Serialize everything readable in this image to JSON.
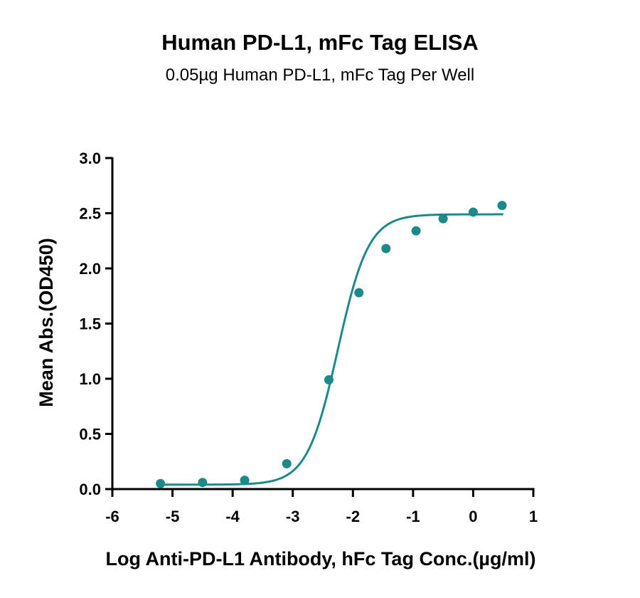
{
  "chart_data": {
    "type": "scatter",
    "title": "Human PD-L1, mFc Tag ELISA",
    "subtitle": "0.05µg Human PD-L1, mFc Tag Per Well",
    "xlabel": "Log Anti-PD-L1 Antibody, hFc Tag Conc.(µg/ml)",
    "ylabel": "Mean Abs.(OD450)",
    "xlim": [
      -6,
      1
    ],
    "ylim": [
      0,
      3.0
    ],
    "x_ticks": [
      -6,
      -5,
      -4,
      -3,
      -2,
      -1,
      0,
      1
    ],
    "x_tick_labels": [
      "-6",
      "-5",
      "-4",
      "-3",
      "-2",
      "-1",
      "0",
      "1"
    ],
    "y_ticks": [
      0,
      0.5,
      1.0,
      1.5,
      2.0,
      2.5,
      3.0
    ],
    "y_tick_labels": [
      "0.0",
      "0.5",
      "1.0",
      "1.5",
      "2.0",
      "2.5",
      "3.0"
    ],
    "grid": false,
    "color": "#1a8a8a",
    "points": {
      "x": [
        -5.2,
        -4.5,
        -3.8,
        -3.1,
        -2.4,
        -1.9,
        -1.45,
        -0.95,
        -0.5,
        0.0,
        0.48
      ],
      "y": [
        0.05,
        0.06,
        0.08,
        0.23,
        0.99,
        1.78,
        2.18,
        2.34,
        2.45,
        2.51,
        2.57
      ]
    },
    "fit": {
      "model": "4PL",
      "bottom": 0.04,
      "top": 2.49,
      "logEC50": -2.25,
      "hill": 1.7,
      "x_range": [
        -5.2,
        0.5
      ]
    }
  }
}
